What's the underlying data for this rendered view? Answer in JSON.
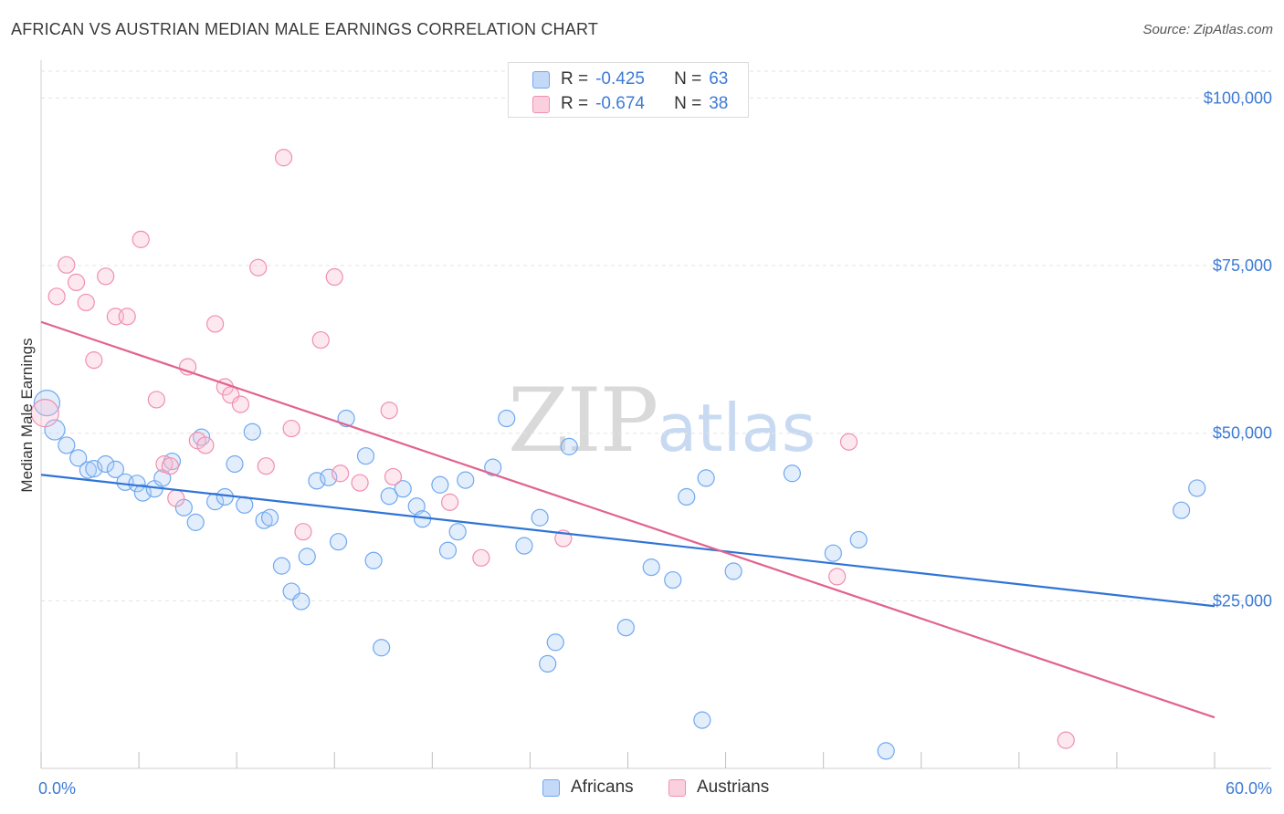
{
  "title": "AFRICAN VS AUSTRIAN MEDIAN MALE EARNINGS CORRELATION CHART",
  "source": "Source: ZipAtlas.com",
  "watermark": {
    "zip": "ZIP",
    "atlas": "atlas"
  },
  "legend": {
    "rows": [
      {
        "r_label": "R =",
        "r_value": "-0.425",
        "n_label": "N =",
        "n_value": "63",
        "color": "#6fa8f0"
      },
      {
        "r_label": "R =",
        "r_value": "-0.674",
        "n_label": "N =",
        "n_value": "38",
        "color": "#f08fb0"
      }
    ]
  },
  "bottom_legend": [
    "Africans",
    "Austrians"
  ],
  "chart_data": {
    "type": "scatter",
    "title": "AFRICAN VS AUSTRIAN MEDIAN MALE EARNINGS CORRELATION CHART",
    "xlabel": "",
    "ylabel": "Median Male Earnings",
    "xlim": [
      0,
      60
    ],
    "ylim": [
      0,
      104000
    ],
    "x_tick_labels": [
      "0.0%",
      "60.0%"
    ],
    "y_ticks": [
      25000,
      50000,
      75000,
      100000
    ],
    "y_tick_labels": [
      "$25,000",
      "$50,000",
      "$75,000",
      "$100,000"
    ],
    "grid": true,
    "series": [
      {
        "name": "Africans",
        "color": "#6fa8f0",
        "line_color": "#2f74d6",
        "trend": {
          "x": [
            0,
            60
          ],
          "y": [
            43800,
            24200
          ]
        },
        "points": [
          [
            0.3,
            54500
          ],
          [
            0.7,
            50500
          ],
          [
            1.3,
            48200
          ],
          [
            1.9,
            46300
          ],
          [
            2.4,
            44500
          ],
          [
            2.7,
            44700
          ],
          [
            3.3,
            45400
          ],
          [
            3.8,
            44600
          ],
          [
            4.3,
            42700
          ],
          [
            4.9,
            42500
          ],
          [
            5.2,
            41100
          ],
          [
            5.8,
            41700
          ],
          [
            6.2,
            43300
          ],
          [
            6.7,
            45800
          ],
          [
            7.3,
            38900
          ],
          [
            7.9,
            36700
          ],
          [
            8.2,
            49400
          ],
          [
            8.9,
            39800
          ],
          [
            9.4,
            40500
          ],
          [
            9.9,
            45400
          ],
          [
            10.4,
            39300
          ],
          [
            10.8,
            50200
          ],
          [
            11.4,
            37000
          ],
          [
            11.7,
            37400
          ],
          [
            12.3,
            30200
          ],
          [
            12.8,
            26400
          ],
          [
            13.3,
            24900
          ],
          [
            13.6,
            31600
          ],
          [
            14.1,
            42900
          ],
          [
            14.7,
            43400
          ],
          [
            15.2,
            33800
          ],
          [
            15.6,
            52200
          ],
          [
            16.6,
            46600
          ],
          [
            17.0,
            31000
          ],
          [
            17.4,
            18000
          ],
          [
            17.8,
            40600
          ],
          [
            18.5,
            41700
          ],
          [
            19.2,
            39100
          ],
          [
            19.5,
            37200
          ],
          [
            20.4,
            42300
          ],
          [
            20.8,
            32500
          ],
          [
            21.3,
            35300
          ],
          [
            21.7,
            43000
          ],
          [
            23.1,
            44900
          ],
          [
            23.8,
            52200
          ],
          [
            24.7,
            33200
          ],
          [
            25.5,
            37400
          ],
          [
            25.9,
            15600
          ],
          [
            26.3,
            18800
          ],
          [
            27.0,
            48000
          ],
          [
            29.9,
            21000
          ],
          [
            31.2,
            30000
          ],
          [
            32.3,
            28100
          ],
          [
            33.0,
            40500
          ],
          [
            33.8,
            7200
          ],
          [
            34.0,
            43300
          ],
          [
            35.4,
            29400
          ],
          [
            38.4,
            44000
          ],
          [
            40.5,
            32100
          ],
          [
            41.8,
            34100
          ],
          [
            43.2,
            2600
          ],
          [
            58.3,
            38500
          ],
          [
            59.1,
            41800
          ]
        ]
      },
      {
        "name": "Austrians",
        "color": "#f08fb0",
        "line_color": "#e2638e",
        "trend": {
          "x": [
            0,
            60
          ],
          "y": [
            66600,
            7600
          ]
        },
        "points": [
          [
            0.2,
            53000
          ],
          [
            0.8,
            70400
          ],
          [
            1.3,
            75100
          ],
          [
            1.8,
            72500
          ],
          [
            2.3,
            69500
          ],
          [
            3.3,
            73400
          ],
          [
            3.8,
            67400
          ],
          [
            4.4,
            67400
          ],
          [
            2.7,
            60900
          ],
          [
            5.1,
            78900
          ],
          [
            5.9,
            55000
          ],
          [
            6.3,
            45400
          ],
          [
            6.6,
            45100
          ],
          [
            6.9,
            40300
          ],
          [
            7.5,
            59900
          ],
          [
            8.0,
            48900
          ],
          [
            8.4,
            48200
          ],
          [
            8.9,
            66300
          ],
          [
            9.4,
            56900
          ],
          [
            9.7,
            55700
          ],
          [
            10.2,
            54300
          ],
          [
            11.1,
            74700
          ],
          [
            11.5,
            45100
          ],
          [
            12.4,
            91100
          ],
          [
            12.8,
            50700
          ],
          [
            13.4,
            35300
          ],
          [
            14.3,
            63900
          ],
          [
            15.0,
            73300
          ],
          [
            15.3,
            44000
          ],
          [
            16.3,
            42600
          ],
          [
            17.8,
            53400
          ],
          [
            18.0,
            43500
          ],
          [
            20.9,
            39700
          ],
          [
            22.5,
            31400
          ],
          [
            26.7,
            34300
          ],
          [
            40.7,
            28600
          ],
          [
            41.3,
            48700
          ],
          [
            52.4,
            4200
          ]
        ]
      }
    ]
  }
}
